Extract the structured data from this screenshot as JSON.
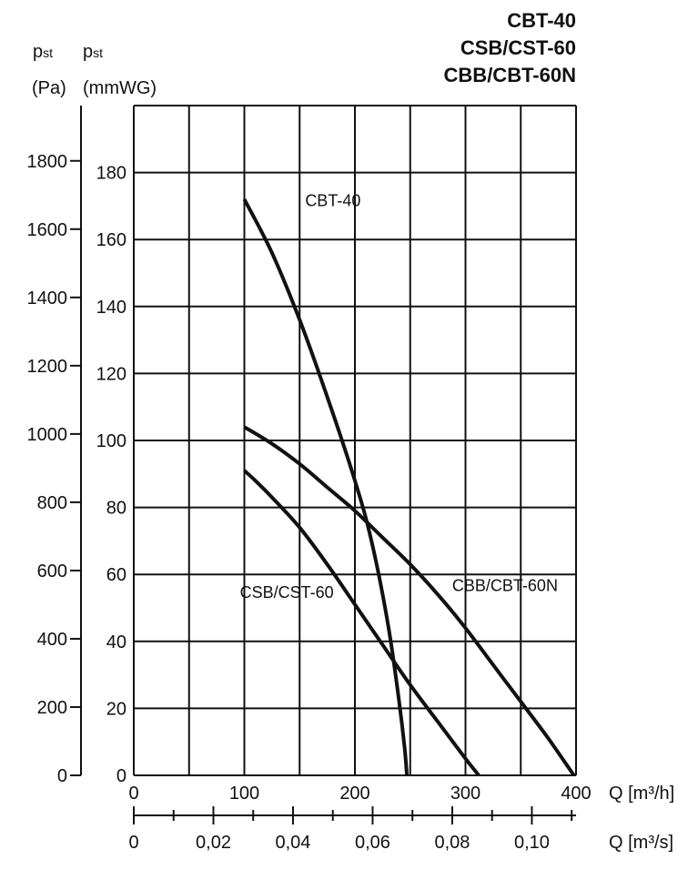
{
  "models": [
    "CBT-40",
    "CSB/CST-60",
    "CBB/CBT-60N"
  ],
  "axis_heads": {
    "pa_symbol": "p",
    "pa_sub": "st",
    "pa_unit": "(Pa)",
    "mm_symbol": "p",
    "mm_sub": "st",
    "mm_unit": "(mmWG)"
  },
  "chart_data": {
    "type": "line",
    "x_axis": {
      "label": "Q [m³/h]",
      "range": [
        0,
        400
      ],
      "ticks": [
        0,
        100,
        200,
        300,
        400
      ],
      "tick_labels": [
        "0",
        "100",
        "200",
        "300",
        "400"
      ],
      "gridlines": [
        0,
        50,
        100,
        150,
        200,
        250,
        300,
        350,
        400
      ]
    },
    "x2_axis": {
      "label": "Q [m³/s]",
      "range": [
        0,
        0.1111
      ],
      "ticks": [
        0,
        0.01,
        0.02,
        0.03,
        0.04,
        0.05,
        0.06,
        0.07,
        0.08,
        0.09,
        0.1,
        0.11
      ],
      "tick_labels": [
        {
          "value": 0,
          "text": "0"
        },
        {
          "value": 0.02,
          "text": "0,02"
        },
        {
          "value": 0.04,
          "text": "0,04"
        },
        {
          "value": 0.06,
          "text": "0,06"
        },
        {
          "value": 0.08,
          "text": "0,08"
        },
        {
          "value": 0.1,
          "text": "0,10"
        }
      ]
    },
    "y_axis_mmwg": {
      "range": [
        0,
        200
      ],
      "ticks": [
        0,
        20,
        40,
        60,
        80,
        100,
        120,
        140,
        160,
        180
      ],
      "gridlines": [
        0,
        20,
        40,
        60,
        80,
        100,
        120,
        140,
        160,
        180,
        200
      ]
    },
    "y_axis_pa": {
      "range": [
        0,
        1962
      ],
      "ticks": [
        0,
        200,
        400,
        600,
        800,
        1000,
        1200,
        1400,
        1600,
        1800
      ]
    },
    "grid": true,
    "series": [
      {
        "name": "CBT-40",
        "label_pos": [
          155,
          170
        ],
        "points": [
          [
            100,
            172
          ],
          [
            125,
            156
          ],
          [
            150,
            136
          ],
          [
            175,
            113
          ],
          [
            200,
            88
          ],
          [
            215,
            70
          ],
          [
            230,
            45
          ],
          [
            240,
            22
          ],
          [
            245,
            8
          ],
          [
            247,
            0
          ]
        ]
      },
      {
        "name": "CSB/CST-60",
        "label_pos": [
          96,
          53
        ],
        "points": [
          [
            100,
            91
          ],
          [
            110,
            88
          ],
          [
            125,
            83
          ],
          [
            150,
            74
          ],
          [
            175,
            63
          ],
          [
            200,
            51
          ],
          [
            225,
            39
          ],
          [
            250,
            27
          ],
          [
            275,
            16
          ],
          [
            300,
            5
          ],
          [
            312,
            0
          ]
        ]
      },
      {
        "name": "CBB/CBT-60N",
        "label_pos": [
          288,
          55
        ],
        "points": [
          [
            100,
            104
          ],
          [
            125,
            99
          ],
          [
            150,
            93
          ],
          [
            175,
            86
          ],
          [
            200,
            79
          ],
          [
            225,
            71
          ],
          [
            250,
            63
          ],
          [
            275,
            54
          ],
          [
            300,
            44
          ],
          [
            325,
            33
          ],
          [
            350,
            22
          ],
          [
            375,
            11
          ],
          [
            398,
            0
          ]
        ]
      }
    ]
  }
}
